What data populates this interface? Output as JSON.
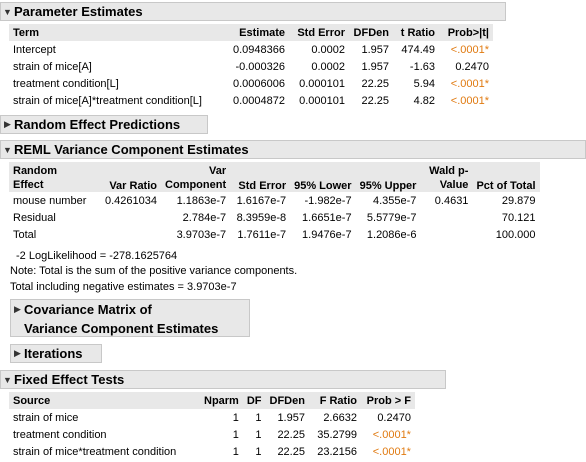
{
  "param": {
    "title": "Parameter Estimates",
    "headers": [
      "Term",
      "Estimate",
      "Std Error",
      "DFDen",
      "t Ratio",
      "Prob>|t|"
    ],
    "rows": [
      [
        "Intercept",
        "0.0948366",
        "0.0002",
        "1.957",
        "474.49",
        "<.0001*"
      ],
      [
        "strain of mice[A]",
        "-0.000326",
        "0.0002",
        "1.957",
        "-1.63",
        "0.2470"
      ],
      [
        "treatment condition[L]",
        "0.0006006",
        "0.000101",
        "22.25",
        "5.94",
        "<.0001*"
      ],
      [
        "strain of mice[A]*treatment condition[L]",
        "0.0004872",
        "0.000101",
        "22.25",
        "4.82",
        "<.0001*"
      ]
    ]
  },
  "random": {
    "title": "Random Effect Predictions"
  },
  "reml": {
    "title": "REML Variance Component Estimates",
    "headers": {
      "c1a": "Random",
      "c1b": "Effect",
      "c2": "Var Ratio",
      "c3a": "Var",
      "c3b": "Component",
      "c4": "Std Error",
      "c5": "95% Lower",
      "c6": "95% Upper",
      "c7a": "Wald p-",
      "c7b": "Value",
      "c8": "Pct of Total"
    },
    "rows": [
      [
        "mouse number",
        "0.4261034",
        "1.1863e-7",
        "1.6167e-7",
        "-1.982e-7",
        "4.355e-7",
        "0.4631",
        "29.879"
      ],
      [
        "Residual",
        "",
        "2.784e-7",
        "8.3959e-8",
        "1.6651e-7",
        "5.5779e-7",
        "",
        "70.121"
      ],
      [
        "Total",
        "",
        "3.9703e-7",
        "1.7611e-7",
        "1.9476e-7",
        "1.2086e-6",
        "",
        "100.000"
      ]
    ],
    "loglik": "-2 LogLikelihood =   -278.1625764",
    "note": "Note: Total is the sum of the positive variance components.",
    "neg": "Total including negative estimates =   3.9703e-7"
  },
  "cov": {
    "title_line1": "Covariance Matrix of",
    "title_line2": "Variance Component Estimates"
  },
  "iter": {
    "title": "Iterations"
  },
  "fixed": {
    "title": "Fixed Effect Tests",
    "headers": [
      "Source",
      "Nparm",
      "DF",
      "DFDen",
      "F Ratio",
      "Prob > F"
    ],
    "rows": [
      [
        "strain of mice",
        "1",
        "1",
        "1.957",
        "2.6632",
        "0.2470"
      ],
      [
        "treatment condition",
        "1",
        "1",
        "22.25",
        "35.2799",
        "<.0001*"
      ],
      [
        "strain of mice*treatment condition",
        "1",
        "1",
        "22.25",
        "23.2156",
        "<.0001*"
      ]
    ]
  },
  "colors": {
    "header_bg": "#e8e8e8",
    "significant": "#e07a10"
  },
  "icons": {
    "expanded": "triangle-down-icon",
    "collapsed": "triangle-right-icon"
  }
}
